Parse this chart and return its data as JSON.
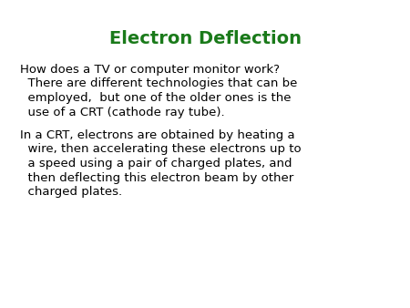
{
  "title": "Electron Deflection",
  "title_color": "#1a7a1a",
  "title_fontsize": 14,
  "title_fontweight": "bold",
  "background_color": "#ffffff",
  "text_color": "#000000",
  "body_fontsize": 9.5,
  "paragraph1_line1": "How does a TV or computer monitor work?",
  "paragraph1_line2": "  There are different technologies that can be",
  "paragraph1_line3": "  employed,  but one of the older ones is the",
  "paragraph1_line4": "  use of a CRT (cathode ray tube).",
  "paragraph2_line1": "In a CRT, electrons are obtained by heating a",
  "paragraph2_line2": "  wire, then accelerating these electrons up to",
  "paragraph2_line3": "  a speed using a pair of charged plates, and",
  "paragraph2_line4": "  then deflecting this electron beam by other",
  "paragraph2_line5": "  charged plates.",
  "font_family": "DejaVu Sans"
}
